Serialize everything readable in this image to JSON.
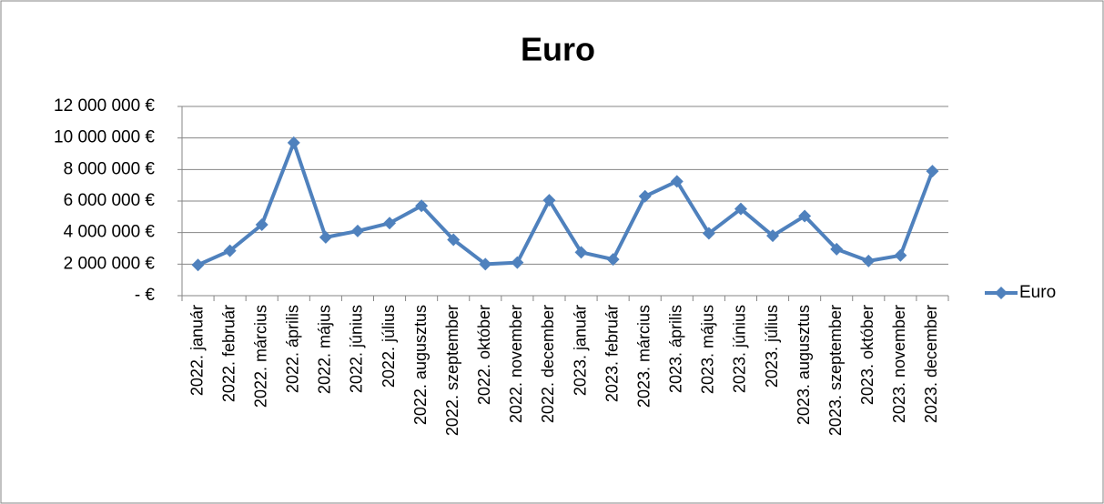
{
  "chart_data": {
    "type": "line",
    "title": "Euro",
    "categories": [
      "2022. január",
      "2022. február",
      "2022. március",
      "2022. április",
      "2022. május",
      "2022. június",
      "2022. július",
      "2022. augusztus",
      "2022. szeptember",
      "2022. október",
      "2022. november",
      "2022. december",
      "2023. január",
      "2023. február",
      "2023. március",
      "2023. április",
      "2023. május",
      "2023. június",
      "2023. július",
      "2023. augusztus",
      "2023. szeptember",
      "2023. október",
      "2023. november",
      "2023. december"
    ],
    "series": [
      {
        "name": "Euro",
        "color": "#4f81bd",
        "values": [
          1950000,
          2850000,
          4500000,
          9700000,
          3700000,
          4100000,
          4600000,
          5700000,
          3550000,
          2000000,
          2100000,
          6050000,
          2750000,
          2300000,
          6300000,
          7250000,
          3950000,
          5500000,
          3800000,
          5050000,
          2950000,
          2200000,
          2550000,
          7900000
        ]
      }
    ],
    "ylim": [
      0,
      12000000
    ],
    "yticks": [
      {
        "value": 0,
        "label": "-  €"
      },
      {
        "value": 2000000,
        "label": "2 000 000 €"
      },
      {
        "value": 4000000,
        "label": "4 000 000 €"
      },
      {
        "value": 6000000,
        "label": "6 000 000 €"
      },
      {
        "value": 8000000,
        "label": "8 000 000 €"
      },
      {
        "value": 10000000,
        "label": "10 000 000 €"
      },
      {
        "value": 12000000,
        "label": "12 000 000 €"
      }
    ],
    "grid": true,
    "legend": "right"
  }
}
